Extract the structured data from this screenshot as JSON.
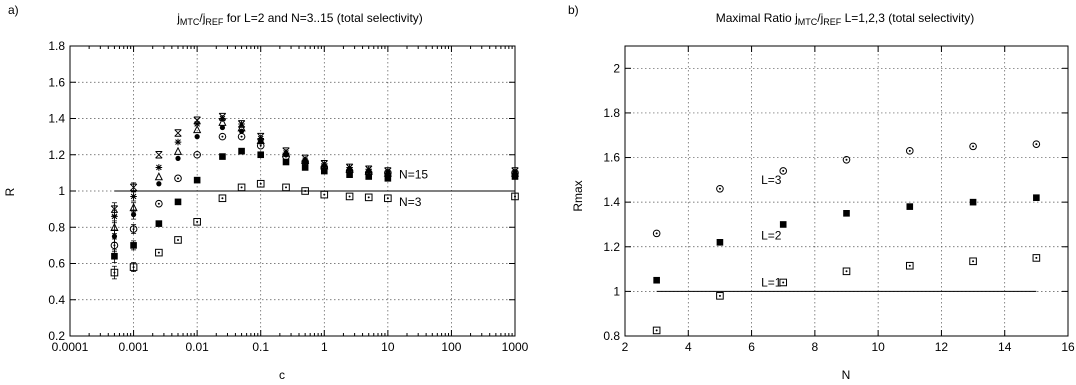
{
  "chart_data": [
    {
      "type": "scatter",
      "panel_label": "a)",
      "title": {
        "j1": "j",
        "s1": "MTC",
        "slash": "/j",
        "s2": "REF",
        "rest": " for L=2 and N=3..15 (total selectivity)"
      },
      "xlabel": "c",
      "ylabel": "R",
      "xscale": "log",
      "xlim": [
        0.0001,
        1000
      ],
      "ylim": [
        0.2,
        1.8
      ],
      "xticks": [
        {
          "v": 0.0001,
          "label": "0.0001"
        },
        {
          "v": 0.001,
          "label": "0.001"
        },
        {
          "v": 0.01,
          "label": "0.01"
        },
        {
          "v": 0.1,
          "label": "0.1"
        },
        {
          "v": 1,
          "label": "1"
        },
        {
          "v": 10,
          "label": "10"
        },
        {
          "v": 100,
          "label": "100"
        },
        {
          "v": 1000,
          "label": "1000"
        }
      ],
      "yticks": [
        {
          "v": 0.2,
          "label": "0.2"
        },
        {
          "v": 0.4,
          "label": "0.4"
        },
        {
          "v": 0.6,
          "label": "0.6"
        },
        {
          "v": 0.8,
          "label": "0.8"
        },
        {
          "v": 1.0,
          "label": "1"
        },
        {
          "v": 1.2,
          "label": "1.2"
        },
        {
          "v": 1.4,
          "label": "1.4"
        },
        {
          "v": 1.6,
          "label": "1.6"
        },
        {
          "v": 1.8,
          "label": "1.8"
        }
      ],
      "grid": true,
      "reference_line": {
        "y": 1.0,
        "x_from": 0.0005,
        "x_to": 1000
      },
      "annotations": [
        {
          "text": "N=15",
          "x": 15,
          "y": 1.09
        },
        {
          "text": "N=3",
          "x": 15,
          "y": 0.94
        }
      ],
      "x": [
        0.0005,
        0.001,
        0.0025,
        0.005,
        0.01,
        0.025,
        0.05,
        0.1,
        0.25,
        0.5,
        1,
        2.5,
        5,
        10,
        1000
      ],
      "series": [
        {
          "marker": "box-dot",
          "values": [
            0.55,
            0.58,
            0.66,
            0.73,
            0.83,
            0.96,
            1.02,
            1.04,
            1.02,
            1.0,
            0.98,
            0.97,
            0.965,
            0.96,
            0.97
          ]
        },
        {
          "marker": "square",
          "values": [
            0.64,
            0.7,
            0.82,
            0.94,
            1.06,
            1.19,
            1.22,
            1.2,
            1.16,
            1.13,
            1.11,
            1.09,
            1.08,
            1.07,
            1.08
          ]
        },
        {
          "marker": "circle-dot",
          "values": [
            0.7,
            0.79,
            0.93,
            1.07,
            1.2,
            1.3,
            1.3,
            1.25,
            1.19,
            1.16,
            1.13,
            1.11,
            1.1,
            1.1,
            1.1
          ]
        },
        {
          "marker": "dot",
          "values": [
            0.75,
            0.87,
            1.04,
            1.18,
            1.3,
            1.35,
            1.33,
            1.27,
            1.2,
            1.16,
            1.14,
            1.12,
            1.11,
            1.1,
            1.1
          ]
        },
        {
          "marker": "triangle",
          "values": [
            0.8,
            0.91,
            1.08,
            1.22,
            1.34,
            1.38,
            1.35,
            1.28,
            1.21,
            1.17,
            1.14,
            1.12,
            1.11,
            1.1,
            1.1
          ]
        },
        {
          "marker": "star",
          "values": [
            0.86,
            0.97,
            1.13,
            1.27,
            1.37,
            1.4,
            1.37,
            1.29,
            1.21,
            1.17,
            1.15,
            1.13,
            1.12,
            1.11,
            1.11
          ]
        },
        {
          "marker": "x-bar",
          "values": [
            0.9,
            1.02,
            1.2,
            1.32,
            1.39,
            1.41,
            1.37,
            1.3,
            1.22,
            1.18,
            1.15,
            1.13,
            1.12,
            1.11,
            1.11
          ]
        }
      ]
    },
    {
      "type": "scatter",
      "panel_label": "b)",
      "title": {
        "pre": "Maximal Ratio ",
        "j1": "j",
        "s1": "MTC",
        "slash": "/j",
        "s2": "REF",
        "rest": " L=1,2,3 (total selectivity)"
      },
      "xlabel": "N",
      "ylabel": "Rmax",
      "xlim": [
        2,
        16
      ],
      "ylim": [
        0.8,
        2.1
      ],
      "xticks": [
        {
          "v": 2,
          "label": "2"
        },
        {
          "v": 4,
          "label": "4"
        },
        {
          "v": 6,
          "label": "6"
        },
        {
          "v": 8,
          "label": "8"
        },
        {
          "v": 10,
          "label": "10"
        },
        {
          "v": 12,
          "label": "12"
        },
        {
          "v": 14,
          "label": "14"
        },
        {
          "v": 16,
          "label": "16"
        }
      ],
      "yticks": [
        {
          "v": 0.8,
          "label": "0.8"
        },
        {
          "v": 1.0,
          "label": "1"
        },
        {
          "v": 1.2,
          "label": "1.2"
        },
        {
          "v": 1.4,
          "label": "1.4"
        },
        {
          "v": 1.6,
          "label": "1.6"
        },
        {
          "v": 1.8,
          "label": "1.8"
        },
        {
          "v": 2.0,
          "label": "2"
        }
      ],
      "grid": true,
      "reference_line": {
        "y": 1.0,
        "x_from": 3,
        "x_to": 15
      },
      "annotations": [
        {
          "text": "L=3",
          "x": 6.3,
          "y": 1.5
        },
        {
          "text": "L=2",
          "x": 6.3,
          "y": 1.25
        },
        {
          "text": "L=1",
          "x": 6.3,
          "y": 1.04
        }
      ],
      "x": [
        3,
        5,
        7,
        9,
        11,
        13,
        15
      ],
      "series": [
        {
          "name": "L=3",
          "marker": "circle-dot",
          "values": [
            1.26,
            1.46,
            1.54,
            1.59,
            1.63,
            1.65,
            1.66
          ]
        },
        {
          "name": "L=2",
          "marker": "square",
          "values": [
            1.05,
            1.22,
            1.3,
            1.35,
            1.38,
            1.4,
            1.42
          ]
        },
        {
          "name": "L=1",
          "marker": "box-dot",
          "values": [
            0.825,
            0.98,
            1.04,
            1.09,
            1.115,
            1.135,
            1.15
          ]
        }
      ]
    }
  ]
}
